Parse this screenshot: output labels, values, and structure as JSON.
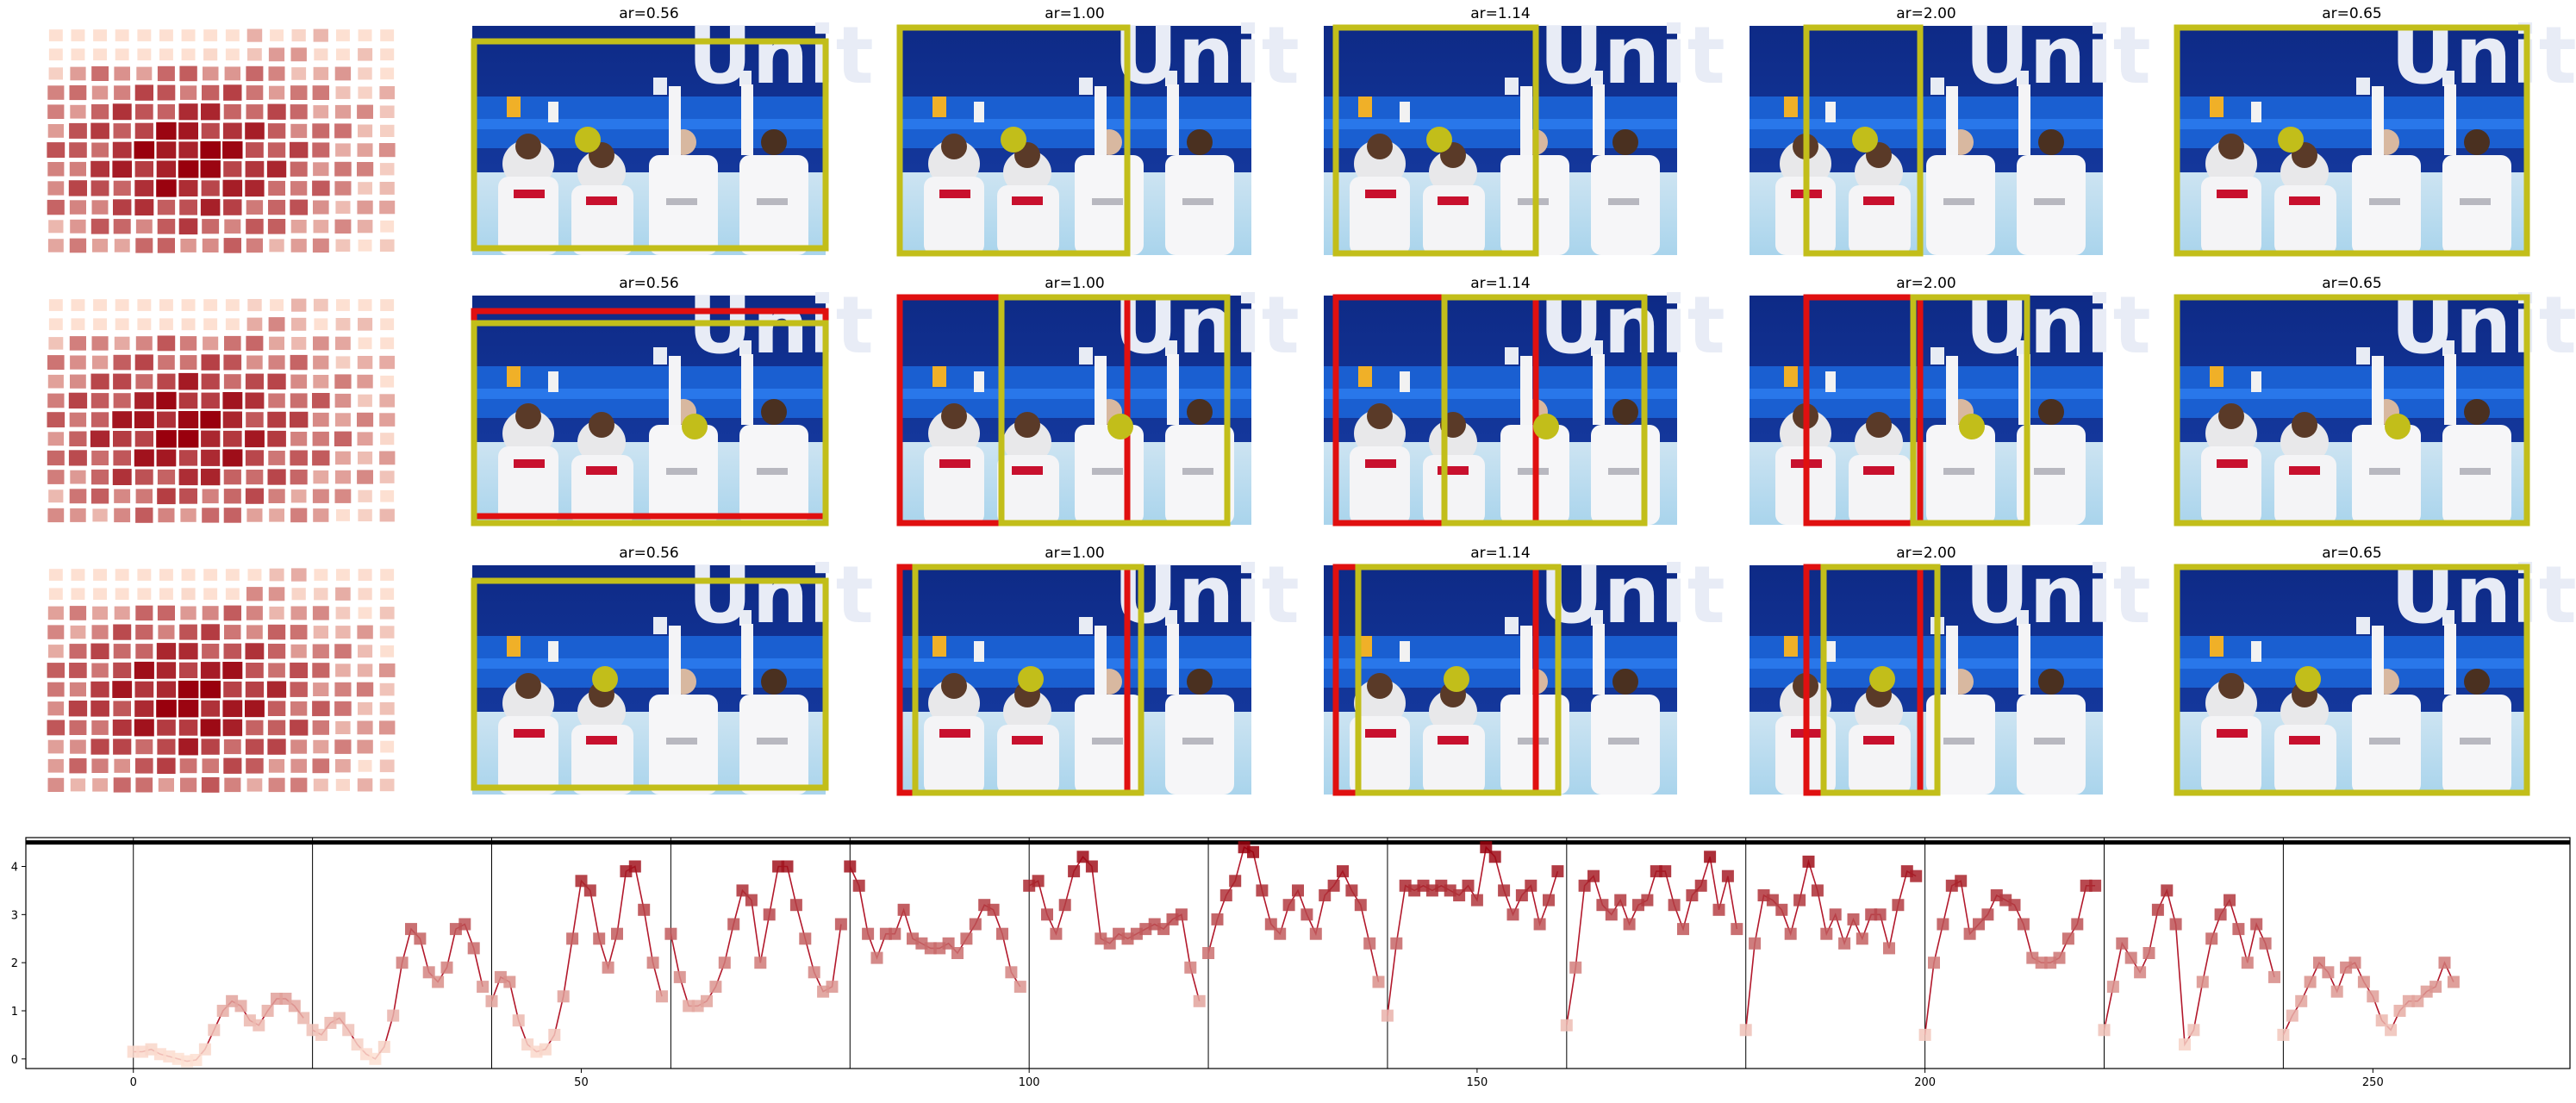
{
  "rows": [
    {
      "titles": [
        "ar=0.56",
        "ar=1.00",
        "ar=1.14",
        "ar=2.00",
        "ar=0.65"
      ]
    },
    {
      "titles": [
        "ar=0.56",
        "ar=1.00",
        "ar=1.14",
        "ar=2.00",
        "ar=0.65"
      ]
    },
    {
      "titles": [
        "ar=0.56",
        "ar=1.00",
        "ar=1.14",
        "ar=2.00",
        "ar=0.65"
      ]
    }
  ],
  "colors": {
    "box_yellow": "#c2be1a",
    "box_red": "#e01010",
    "curve": "#b2182b",
    "heat_low": "#fde0d2",
    "heat_high": "#99000d"
  },
  "chart_data": {
    "type": "line",
    "x_ticks": [
      0,
      50,
      100,
      150,
      200,
      250
    ],
    "y_ticks": [
      0,
      1,
      2,
      3,
      4
    ],
    "xlim": [
      -12,
      272
    ],
    "ylim": [
      -0.2,
      4.6
    ],
    "segment_boundaries": [
      0,
      20,
      40,
      60,
      80,
      100,
      120,
      140,
      160,
      180,
      200,
      220,
      240
    ],
    "reference_line_y": 4.5,
    "segments": [
      [
        0.15,
        0.15,
        0.2,
        0.1,
        0.05,
        0.0,
        -0.05,
        -0.02,
        0.2,
        0.6,
        1.0,
        1.2,
        1.1,
        0.8,
        0.7,
        1.0,
        1.25,
        1.25,
        1.1,
        0.85
      ],
      [
        0.6,
        0.5,
        0.75,
        0.85,
        0.6,
        0.3,
        0.1,
        0.0,
        0.25,
        0.9,
        2.0,
        2.7,
        2.5,
        1.8,
        1.6,
        1.9,
        2.7,
        2.8,
        2.3,
        1.5
      ],
      [
        1.2,
        1.7,
        1.6,
        0.8,
        0.3,
        0.15,
        0.2,
        0.5,
        1.3,
        2.5,
        3.7,
        3.5,
        2.5,
        1.9,
        2.6,
        3.9,
        4.0,
        3.1,
        2.0,
        1.3
      ],
      [
        2.6,
        1.7,
        1.1,
        1.1,
        1.2,
        1.5,
        2.0,
        2.8,
        3.5,
        3.3,
        2.0,
        3.0,
        4.0,
        4.0,
        3.2,
        2.5,
        1.8,
        1.4,
        1.5,
        2.8
      ],
      [
        4.0,
        3.6,
        2.6,
        2.1,
        2.6,
        2.6,
        3.1,
        2.5,
        2.4,
        2.3,
        2.3,
        2.4,
        2.2,
        2.5,
        2.8,
        3.2,
        3.1,
        2.6,
        1.8,
        1.5
      ],
      [
        3.6,
        3.7,
        3.0,
        2.6,
        3.2,
        3.9,
        4.2,
        4.0,
        2.5,
        2.4,
        2.6,
        2.5,
        2.6,
        2.7,
        2.8,
        2.7,
        2.9,
        3.0,
        1.9,
        1.2
      ],
      [
        2.2,
        2.9,
        3.4,
        3.7,
        4.4,
        4.3,
        3.5,
        2.8,
        2.6,
        3.2,
        3.5,
        3.0,
        2.6,
        3.4,
        3.6,
        3.9,
        3.5,
        3.2,
        2.4,
        1.6
      ],
      [
        0.9,
        2.4,
        3.6,
        3.5,
        3.6,
        3.5,
        3.6,
        3.5,
        3.4,
        3.6,
        3.3,
        4.4,
        4.2,
        3.5,
        3.0,
        3.4,
        3.6,
        2.8,
        3.3,
        3.9
      ],
      [
        0.7,
        1.9,
        3.6,
        3.8,
        3.2,
        3.0,
        3.3,
        2.8,
        3.2,
        3.3,
        3.9,
        3.9,
        3.2,
        2.7,
        3.4,
        3.6,
        4.2,
        3.1,
        3.8,
        2.7
      ],
      [
        0.6,
        2.4,
        3.4,
        3.3,
        3.1,
        2.6,
        3.3,
        4.1,
        3.5,
        2.6,
        3.0,
        2.4,
        2.9,
        2.5,
        3.0,
        3.0,
        2.3,
        3.2,
        3.9,
        3.8
      ],
      [
        0.5,
        2.0,
        2.8,
        3.6,
        3.7,
        2.6,
        2.8,
        3.0,
        3.4,
        3.3,
        3.2,
        2.8,
        2.1,
        2.0,
        2.0,
        2.1,
        2.5,
        2.8,
        3.6,
        3.6
      ],
      [
        0.6,
        1.5,
        2.4,
        2.1,
        1.8,
        2.2,
        3.1,
        3.5,
        2.8,
        0.3,
        0.6,
        1.6,
        2.5,
        3.0,
        3.3,
        2.7,
        2.0,
        2.8,
        2.4,
        1.7
      ],
      [
        0.5,
        0.9,
        1.2,
        1.6,
        2.0,
        1.8,
        1.4,
        1.9,
        2.0,
        1.6,
        1.3,
        0.8,
        0.6,
        1.0,
        1.2,
        1.2,
        1.4,
        1.5,
        2.0,
        1.6
      ]
    ]
  }
}
